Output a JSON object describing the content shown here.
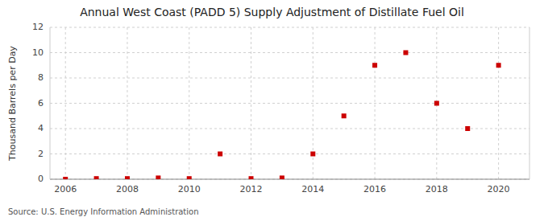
{
  "chart_data": {
    "type": "scatter",
    "title": "Annual West Coast (PADD 5) Supply Adjustment of Distillate Fuel Oil",
    "y_label": "Thousand Barrels per Day",
    "source": "Source: U.S. Energy Information Administration",
    "x": [
      2006,
      2007,
      2008,
      2009,
      2010,
      2011,
      2012,
      2013,
      2014,
      2015,
      2016,
      2017,
      2018,
      2019,
      2020
    ],
    "values": [
      0,
      0.05,
      0.05,
      0.1,
      0.05,
      2.0,
      0.05,
      0.1,
      2.0,
      5.0,
      9.0,
      10.0,
      6.0,
      4.0,
      9.0
    ],
    "color": "#cc0000",
    "marker": "square",
    "xlim": [
      2005.5,
      2021.0
    ],
    "xticks": [
      2006,
      2008,
      2010,
      2012,
      2014,
      2016,
      2018,
      2020
    ],
    "ylim": [
      0,
      12
    ],
    "yticks": [
      0,
      2,
      4,
      6,
      8,
      10,
      12
    ],
    "grid": true
  }
}
